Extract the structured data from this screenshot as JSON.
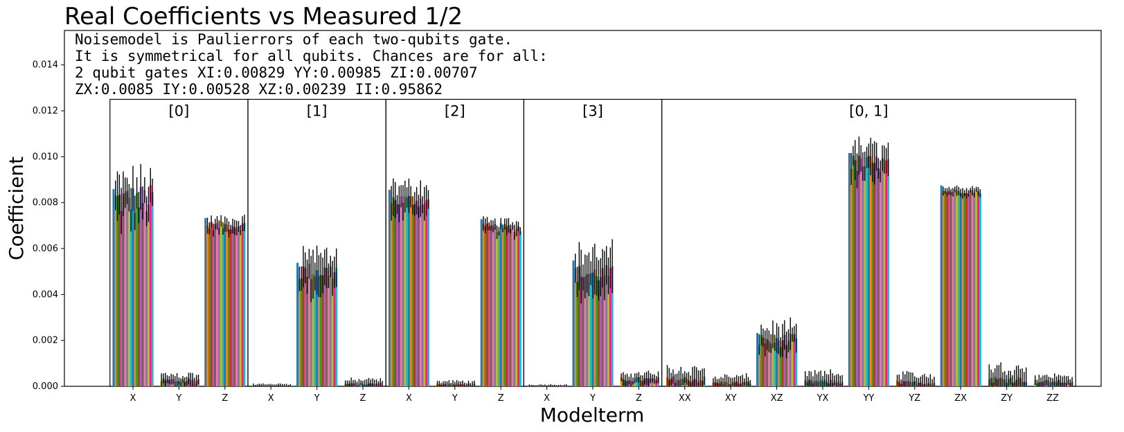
{
  "chart_data": {
    "type": "bar",
    "title": "Real Coefficients vs Measured 1/2",
    "xlabel": "Modelterm",
    "ylabel": "Coefficient",
    "ylim": [
      0,
      0.0155
    ],
    "yticks": [
      "0.000",
      "0.002",
      "0.004",
      "0.006",
      "0.008",
      "0.010",
      "0.012",
      "0.014"
    ],
    "grid": false,
    "note_lines": [
      "Noisemodel is Paulierrors of each two-qubits gate.",
      "It is symmetrical for all qubits. Chances are for all:",
      "2 qubit gates XI:0.00829   YY:0.00985   ZI:0.00707",
      "ZX:0.0085   IY:0.00528   XZ:0.00239   II:0.95862"
    ],
    "groups": [
      {
        "label": "[0]",
        "terms": [
          "X",
          "Y",
          "Z"
        ]
      },
      {
        "label": "[1]",
        "terms": [
          "X",
          "Y",
          "Z"
        ]
      },
      {
        "label": "[2]",
        "terms": [
          "X",
          "Y",
          "Z"
        ]
      },
      {
        "label": "[3]",
        "terms": [
          "X",
          "Y",
          "Z"
        ]
      },
      {
        "label": "[0, 1]",
        "terms": [
          "XX",
          "XY",
          "XZ",
          "YX",
          "YY",
          "YZ",
          "ZX",
          "ZY",
          "ZZ"
        ]
      }
    ],
    "categories": [
      "X",
      "Y",
      "Z",
      "X",
      "Y",
      "Z",
      "X",
      "Y",
      "Z",
      "X",
      "Y",
      "Z",
      "XX",
      "XY",
      "XZ",
      "YX",
      "YY",
      "YZ",
      "ZX",
      "ZY",
      "ZZ"
    ],
    "series_colors": [
      "#1f77b4",
      "#ff7f0e",
      "#2ca02c",
      "#d62728",
      "#9467bd",
      "#8c564b",
      "#e377c2",
      "#7f7f7f",
      "#bcbd22",
      "#17becf",
      "#1f77b4",
      "#ff7f0e",
      "#2ca02c",
      "#d62728",
      "#9467bd",
      "#8c564b",
      "#e377c2",
      "#7f7f7f",
      "#bcbd22",
      "#ff1493",
      "#17becf"
    ],
    "reference_values": [
      0.00859,
      0.0,
      0.00733,
      0.0,
      0.00538,
      0.0,
      0.00856,
      0.0,
      0.00728,
      0.0,
      0.00548,
      0.0,
      0.0,
      0.0,
      0.00232,
      0.0,
      0.01016,
      0.0,
      0.00875,
      0.0,
      0.0
    ],
    "category_profiles": [
      {
        "mean": 0.0081,
        "spread": 0.0007,
        "err": 0.0009
      },
      {
        "mean": 0.00025,
        "spread": 0.00015,
        "err": 0.0003
      },
      {
        "mean": 0.007,
        "spread": 0.0002,
        "err": 0.0003
      },
      {
        "mean": 3e-05,
        "spread": 2e-05,
        "err": 8e-05
      },
      {
        "mean": 0.005,
        "spread": 0.0004,
        "err": 0.0009
      },
      {
        "mean": 0.0001,
        "spread": 6e-05,
        "err": 0.0002
      },
      {
        "mean": 0.0081,
        "spread": 0.0003,
        "err": 0.0007
      },
      {
        "mean": 8e-05,
        "spread": 5e-05,
        "err": 0.00015
      },
      {
        "mean": 0.0069,
        "spread": 0.0002,
        "err": 0.0003
      },
      {
        "mean": 3e-05,
        "spread": 2e-05,
        "err": 5e-05
      },
      {
        "mean": 0.0049,
        "spread": 0.0004,
        "err": 0.001
      },
      {
        "mean": 0.0003,
        "spread": 0.0001,
        "err": 0.0003
      },
      {
        "mean": 0.0003,
        "spread": 0.00015,
        "err": 0.0005
      },
      {
        "mean": 0.00015,
        "spread": 8e-05,
        "err": 0.0003
      },
      {
        "mean": 0.002,
        "spread": 0.0003,
        "err": 0.0006
      },
      {
        "mean": 0.0002,
        "spread": 0.0001,
        "err": 0.0004
      },
      {
        "mean": 0.0097,
        "spread": 0.0004,
        "err": 0.0008
      },
      {
        "mean": 0.00015,
        "spread": 0.0001,
        "err": 0.0004
      },
      {
        "mean": 0.0085,
        "spread": 0.0001,
        "err": 0.0002
      },
      {
        "mean": 0.0003,
        "spread": 0.00015,
        "err": 0.0006
      },
      {
        "mean": 0.0002,
        "spread": 8e-05,
        "err": 0.0003
      }
    ],
    "measured_series_count": 20
  }
}
